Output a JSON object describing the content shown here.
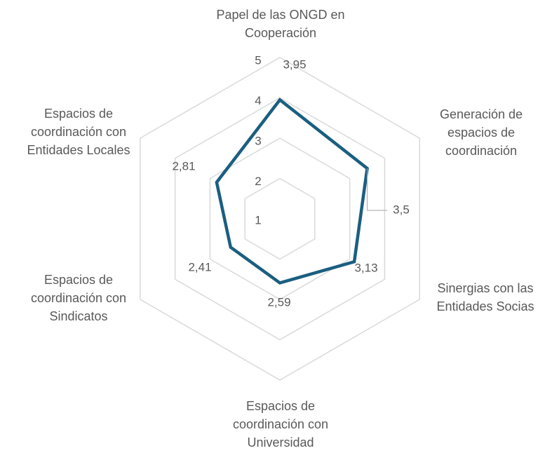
{
  "chart_data": {
    "type": "radar",
    "categories": [
      "Papel de las ONGD en Cooperación",
      "Generación de espacios de coordinación",
      "Sinergias con las Entidades Socias",
      "Espacios de coordinación con Universidad",
      "Espacios de coordinación con Sindicatos",
      "Espacios de coordinación con Entidades Locales"
    ],
    "series": [
      {
        "color": "#1b5e80",
        "values": [
          3.95,
          3.5,
          3.13,
          2.59,
          2.41,
          2.81
        ],
        "value_labels": [
          "3,95",
          "3,5",
          "3,13",
          "2,59",
          "2,41",
          "2,81"
        ]
      }
    ],
    "rlim": [
      1,
      5
    ],
    "rticks": [
      1,
      2,
      3,
      4,
      5
    ],
    "grid": true,
    "grid_color": "#d9d9d9"
  }
}
